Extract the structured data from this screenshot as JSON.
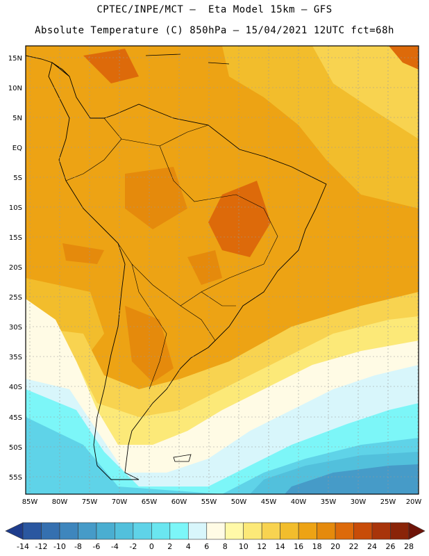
{
  "header": {
    "line1": "CPTEC/INPE/MCT –  Eta Model 15km – GFS",
    "line2": "Absolute Temperature (C) 850hPa – 15/04/2021 12UTC fct=68h"
  },
  "map": {
    "lat_labels": [
      "15N",
      "10N",
      "5N",
      "EQ",
      "5S",
      "10S",
      "15S",
      "20S",
      "25S",
      "30S",
      "35S",
      "40S",
      "45S",
      "50S",
      "55S"
    ],
    "lon_labels": [
      "85W",
      "80W",
      "75W",
      "70W",
      "65W",
      "60W",
      "55W",
      "50W",
      "45W",
      "40W",
      "35W",
      "30W",
      "25W",
      "20W"
    ]
  },
  "colorbar": {
    "tick_labels": [
      "-14",
      "-12",
      "-10",
      "-8",
      "-6",
      "-4",
      "-2",
      "0",
      "2",
      "4",
      "6",
      "8",
      "10",
      "12",
      "14",
      "16",
      "18",
      "20",
      "22",
      "24",
      "26",
      "28"
    ],
    "colors": [
      "#1e3c8c",
      "#2a57a0",
      "#3570b0",
      "#3e86bd",
      "#469bc8",
      "#4aaed1",
      "#52c0dc",
      "#5fd3e8",
      "#6ae6f0",
      "#7cf6f8",
      "#d8f6fb",
      "#fffbe5",
      "#fff9a8",
      "#fce978",
      "#f8d350",
      "#f2bd2c",
      "#eda314",
      "#e58a0c",
      "#dd6a0a",
      "#c84c08",
      "#a8340a",
      "#8a2408",
      "#6e1408"
    ]
  }
}
